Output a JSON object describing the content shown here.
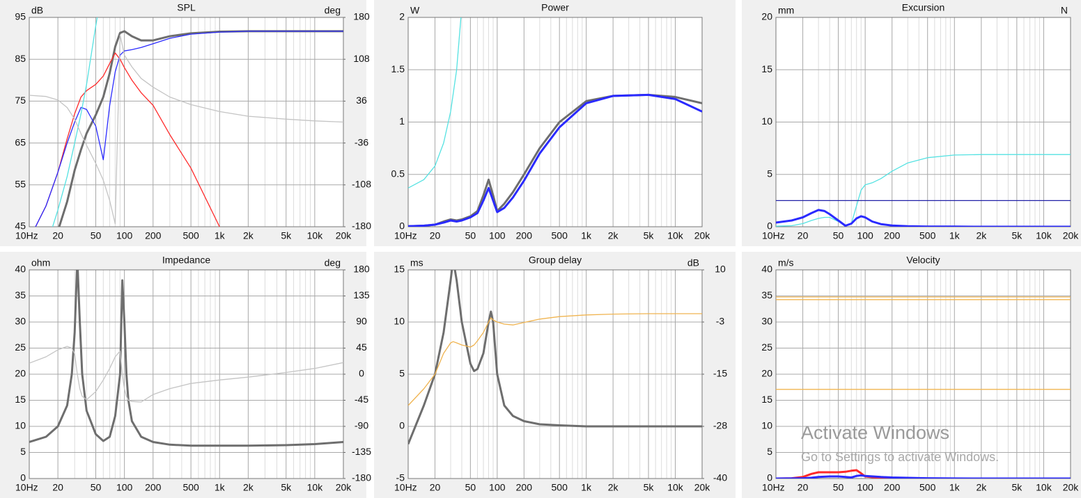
{
  "chart_data": [
    {
      "type": "line",
      "title": "SPL",
      "y_unit": "dB",
      "y2_unit": "deg",
      "xscale": "log",
      "xlim": [
        10,
        20000
      ],
      "xticks": [
        {
          "value": 10,
          "label": "10Hz"
        },
        20,
        50,
        100,
        200,
        500,
        {
          "value": 1000,
          "label": "1k"
        },
        {
          "value": 2000,
          "label": "2k"
        },
        {
          "value": 5000,
          "label": "5k"
        },
        {
          "value": 10000,
          "label": "10k"
        },
        {
          "value": 20000,
          "label": "20k"
        }
      ],
      "xminor": [
        30,
        40,
        60,
        70,
        80,
        90,
        300,
        400,
        600,
        700,
        800,
        900,
        3000,
        4000,
        6000,
        7000,
        8000,
        9000
      ],
      "ylim": [
        45,
        95
      ],
      "yticks": [
        45,
        55,
        65,
        75,
        85,
        95
      ],
      "y2lim": [
        -180,
        180
      ],
      "y2ticks": [
        -180,
        -108,
        -36,
        36,
        108,
        180
      ],
      "x": [
        10,
        15,
        20,
        25,
        30,
        35,
        40,
        50,
        60,
        70,
        80,
        90,
        100,
        120,
        150,
        200,
        300,
        500,
        1000,
        2000,
        5000,
        10000,
        20000
      ],
      "series": [
        {
          "color": "#6e6e6e",
          "values": [
            null,
            null,
            44,
            51,
            58.5,
            63.4,
            67.3,
            71.7,
            76,
            81.7,
            88,
            91.3,
            91.7,
            90.5,
            89.5,
            89.5,
            90.5,
            91.2,
            91.6,
            91.7,
            91.7,
            91.7,
            91.7
          ]
        },
        {
          "color": "#ff2a2a",
          "values": [
            42,
            50,
            58,
            66,
            72,
            76,
            77.5,
            79,
            81,
            84,
            86.5,
            85,
            83,
            80,
            77,
            74,
            67,
            59,
            45,
            33,
            null,
            null,
            null
          ]
        },
        {
          "color": "#2a2aff",
          "values": [
            42,
            50,
            58,
            65,
            70,
            73.5,
            73,
            69,
            61,
            74,
            82,
            86,
            87,
            87.3,
            87.8,
            88.7,
            90,
            91,
            91.5,
            91.7,
            91.7,
            91.7,
            91.7
          ]
        },
        {
          "color": "#55e2e2",
          "values": [
            null,
            40,
            49,
            57,
            65,
            72,
            79,
            93,
            103,
            null,
            null,
            null,
            null,
            null,
            null,
            null,
            null,
            null,
            null,
            null,
            null,
            null,
            null
          ]
        },
        {
          "color": "#c4c4c4",
          "axis": "y2",
          "values": [
            46,
            44,
            38,
            25,
            5,
            -20,
            -40,
            -71,
            -100,
            -135,
            -175,
            150,
            115,
            95,
            75,
            60,
            43,
            30,
            18,
            10,
            5,
            2,
            0
          ]
        }
      ]
    },
    {
      "type": "line",
      "title": "Power",
      "y_unit": "W",
      "xscale": "log",
      "xlim": [
        10,
        20000
      ],
      "xticks": [
        {
          "value": 10,
          "label": "10Hz"
        },
        20,
        50,
        100,
        200,
        500,
        {
          "value": 1000,
          "label": "1k"
        },
        {
          "value": 2000,
          "label": "2k"
        },
        {
          "value": 5000,
          "label": "5k"
        },
        {
          "value": 10000,
          "label": "10k"
        },
        {
          "value": 20000,
          "label": "20k"
        }
      ],
      "xminor": [
        30,
        40,
        60,
        70,
        80,
        90,
        300,
        400,
        600,
        700,
        800,
        900,
        3000,
        4000,
        6000,
        7000,
        8000,
        9000
      ],
      "ylim": [
        0,
        2
      ],
      "yticks": [
        0,
        0.5,
        1,
        1.5,
        2
      ],
      "x": [
        10,
        15,
        20,
        25,
        30,
        35,
        40,
        50,
        60,
        70,
        80,
        90,
        100,
        120,
        150,
        200,
        300,
        500,
        1000,
        2000,
        5000,
        10000,
        20000
      ],
      "series": [
        {
          "color": "#6e6e6e",
          "values": [
            0.005,
            0.01,
            0.02,
            0.05,
            0.07,
            0.06,
            0.07,
            0.1,
            0.15,
            0.3,
            0.45,
            0.3,
            0.15,
            0.22,
            0.33,
            0.5,
            0.75,
            1.0,
            1.2,
            1.25,
            1.26,
            1.24,
            1.18
          ]
        },
        {
          "color": "#2a2aff",
          "values": [
            0.005,
            0.01,
            0.02,
            0.04,
            0.06,
            0.05,
            0.06,
            0.09,
            0.13,
            0.25,
            0.37,
            0.25,
            0.14,
            0.18,
            0.28,
            0.44,
            0.7,
            0.95,
            1.18,
            1.25,
            1.26,
            1.22,
            1.1
          ]
        },
        {
          "color": "#55e2e2",
          "values": [
            0.37,
            0.45,
            0.58,
            0.8,
            1.1,
            1.5,
            2.1,
            3,
            null,
            null,
            null,
            null,
            null,
            null,
            null,
            null,
            null,
            null,
            null,
            null,
            null,
            null,
            null
          ]
        }
      ]
    },
    {
      "type": "line",
      "title": "Excursion",
      "y_unit": "mm",
      "y2_unit": "N",
      "xscale": "log",
      "xlim": [
        10,
        20000
      ],
      "xticks": [
        {
          "value": 10,
          "label": "10Hz"
        },
        20,
        50,
        100,
        200,
        500,
        {
          "value": 1000,
          "label": "1k"
        },
        {
          "value": 2000,
          "label": "2k"
        },
        {
          "value": 5000,
          "label": "5k"
        },
        {
          "value": 10000,
          "label": "10k"
        },
        {
          "value": 20000,
          "label": "20k"
        }
      ],
      "xminor": [
        30,
        40,
        60,
        70,
        80,
        90,
        300,
        400,
        600,
        700,
        800,
        900,
        3000,
        4000,
        6000,
        7000,
        8000,
        9000
      ],
      "ylim": [
        0,
        20
      ],
      "yticks": [
        0,
        5,
        10,
        15,
        20
      ],
      "x": [
        10,
        15,
        20,
        25,
        30,
        35,
        40,
        50,
        60,
        70,
        80,
        90,
        100,
        120,
        150,
        200,
        300,
        500,
        1000,
        2000,
        5000,
        10000,
        20000
      ],
      "series": [
        {
          "color": "#55e2e2",
          "values": [
            0.05,
            0.1,
            0.3,
            0.6,
            0.8,
            0.9,
            0.9,
            0.5,
            0.15,
            0.3,
            2,
            3.5,
            4,
            4.2,
            4.6,
            5.3,
            6.1,
            6.6,
            6.85,
            6.9,
            6.9,
            6.9,
            6.9
          ]
        },
        {
          "color": "#2020a8",
          "values": [
            2.5,
            2.5,
            2.5,
            2.5,
            2.5,
            2.5,
            2.5,
            2.5,
            2.5,
            2.5,
            2.5,
            2.5,
            2.5,
            2.5,
            2.5,
            2.5,
            2.5,
            2.5,
            2.5,
            2.5,
            2.5,
            2.5,
            2.5
          ]
        },
        {
          "color": "#2a2aff",
          "values": [
            0.4,
            0.6,
            0.9,
            1.3,
            1.6,
            1.5,
            1.2,
            0.6,
            0.1,
            0.3,
            0.8,
            1.0,
            0.9,
            0.5,
            0.25,
            0.12,
            0.05,
            0.02,
            0.01,
            0,
            0,
            0,
            0
          ]
        }
      ]
    },
    {
      "type": "line",
      "title": "Impedance",
      "y_unit": "ohm",
      "y2_unit": "deg",
      "xscale": "log",
      "xlim": [
        10,
        20000
      ],
      "xticks": [
        {
          "value": 10,
          "label": "10Hz"
        },
        20,
        50,
        100,
        200,
        500,
        {
          "value": 1000,
          "label": "1k"
        },
        {
          "value": 2000,
          "label": "2k"
        },
        {
          "value": 5000,
          "label": "5k"
        },
        {
          "value": 10000,
          "label": "10k"
        },
        {
          "value": 20000,
          "label": "20k"
        }
      ],
      "xminor": [
        30,
        40,
        60,
        70,
        80,
        90,
        300,
        400,
        600,
        700,
        800,
        900,
        3000,
        4000,
        6000,
        7000,
        8000,
        9000
      ],
      "ylim": [
        0,
        40
      ],
      "yticks": [
        0,
        5,
        10,
        15,
        20,
        25,
        30,
        35,
        40
      ],
      "y2lim": [
        -180,
        180
      ],
      "y2ticks": [
        -180,
        -135,
        -90,
        -45,
        0,
        45,
        90,
        135,
        180
      ],
      "x": [
        10,
        15,
        20,
        25,
        28,
        30,
        32,
        34,
        36,
        40,
        50,
        60,
        70,
        80,
        90,
        95,
        100,
        105,
        110,
        120,
        150,
        200,
        300,
        500,
        1000,
        2000,
        5000,
        10000,
        20000
      ],
      "series": [
        {
          "color": "#6e6e6e",
          "values": [
            7,
            8,
            10,
            14,
            20,
            28,
            42,
            30,
            20,
            13,
            8.5,
            7.2,
            8,
            12,
            20,
            38,
            30,
            20,
            15,
            11,
            8,
            7,
            6.5,
            6.3,
            6.3,
            6.3,
            6.4,
            6.6,
            7
          ]
        },
        {
          "color": "#c4c4c4",
          "axis": "y2",
          "values": [
            19,
            30,
            42,
            48,
            45,
            35,
            0,
            -25,
            -38,
            -44,
            -30,
            -10,
            10,
            30,
            40,
            0,
            -25,
            -38,
            -45,
            -47,
            -48,
            -35,
            -25,
            -16,
            -10,
            -5,
            3,
            10,
            20
          ]
        }
      ]
    },
    {
      "type": "line",
      "title": "Group delay",
      "y_unit": "ms",
      "y2_unit": "dB",
      "xscale": "log",
      "xlim": [
        10,
        20000
      ],
      "xticks": [
        {
          "value": 10,
          "label": "10Hz"
        },
        20,
        50,
        100,
        200,
        500,
        {
          "value": 1000,
          "label": "1k"
        },
        {
          "value": 2000,
          "label": "2k"
        },
        {
          "value": 5000,
          "label": "5k"
        },
        {
          "value": 10000,
          "label": "10k"
        },
        {
          "value": 20000,
          "label": "20k"
        }
      ],
      "xminor": [
        30,
        40,
        60,
        70,
        80,
        90,
        300,
        400,
        600,
        700,
        800,
        900,
        3000,
        4000,
        6000,
        7000,
        8000,
        9000
      ],
      "ylim": [
        -5,
        15
      ],
      "yticks": [
        -5,
        0,
        5,
        10,
        15
      ],
      "y2lim": [
        -40,
        10
      ],
      "y2ticks": [
        -40,
        {
          "value": -27.5,
          "label": "-28"
        },
        -15,
        {
          "value": -2.5,
          "label": "-3"
        },
        10
      ],
      "x": [
        10,
        15,
        20,
        25,
        30,
        32,
        35,
        40,
        50,
        55,
        60,
        70,
        80,
        85,
        90,
        100,
        120,
        150,
        200,
        300,
        500,
        1000,
        2000,
        5000,
        10000,
        20000
      ],
      "series": [
        {
          "color": "#6e6e6e",
          "values": [
            -1.7,
            2,
            5,
            9,
            14,
            16,
            14,
            10,
            6,
            5.3,
            5.5,
            7,
            10,
            11,
            10,
            5,
            2,
            1,
            0.5,
            0.2,
            0.1,
            0,
            0,
            0,
            0,
            0
          ]
        },
        {
          "color": "#f0b450",
          "axis": "y2",
          "values": [
            -22.5,
            -18.5,
            -15,
            -10,
            -7.5,
            -7.2,
            -7.5,
            -8,
            -8.5,
            -8,
            -7,
            -5,
            -2.5,
            -1.5,
            -2,
            -2.5,
            -3,
            -3.2,
            -2.6,
            -1.8,
            -1.2,
            -0.8,
            -0.6,
            -0.5,
            -0.5,
            -0.5
          ]
        }
      ]
    },
    {
      "type": "line",
      "title": "Velocity",
      "y_unit": "m/s",
      "xscale": "log",
      "xlim": [
        10,
        20000
      ],
      "xticks": [
        {
          "value": 10,
          "label": "10Hz"
        },
        20,
        50,
        100,
        200,
        500,
        {
          "value": 1000,
          "label": "1k"
        },
        {
          "value": 2000,
          "label": "2k"
        },
        {
          "value": 5000,
          "label": "5k"
        },
        {
          "value": 10000,
          "label": "10k"
        },
        {
          "value": 20000,
          "label": "20k"
        }
      ],
      "xminor": [
        30,
        40,
        60,
        70,
        80,
        90,
        300,
        400,
        600,
        700,
        800,
        900,
        3000,
        4000,
        6000,
        7000,
        8000,
        9000
      ],
      "ylim": [
        0,
        40
      ],
      "yticks": [
        0,
        5,
        10,
        15,
        20,
        25,
        30,
        35,
        40
      ],
      "x": [
        10,
        15,
        20,
        25,
        30,
        40,
        50,
        60,
        70,
        80,
        90,
        100,
        150,
        200,
        500,
        1000,
        2000,
        5000,
        10000,
        20000
      ],
      "series": [
        {
          "color": "#f0b450",
          "values": [
            34.8,
            34.8,
            34.8,
            34.8,
            34.8,
            34.8,
            34.8,
            34.8,
            34.8,
            34.8,
            34.8,
            34.8,
            34.8,
            34.8,
            34.8,
            34.8,
            34.8,
            34.8,
            34.8,
            34.8
          ]
        },
        {
          "color": "#f0b450",
          "values": [
            34.3,
            34.3,
            34.3,
            34.3,
            34.3,
            34.3,
            34.3,
            34.3,
            34.3,
            34.3,
            34.3,
            34.3,
            34.3,
            34.3,
            34.3,
            34.3,
            34.3,
            34.3,
            34.3,
            34.3
          ]
        },
        {
          "color": "#f0b450",
          "values": [
            17.1,
            17.1,
            17.1,
            17.1,
            17.1,
            17.1,
            17.1,
            17.1,
            17.1,
            17.1,
            17.1,
            17.1,
            17.1,
            17.1,
            17.1,
            17.1,
            17.1,
            17.1,
            17.1,
            17.1
          ]
        },
        {
          "color": "#ff2a2a",
          "values": [
            0,
            0.05,
            0.3,
            0.9,
            1.2,
            1.2,
            1.2,
            1.3,
            1.5,
            1.6,
            1.0,
            0.4,
            0.1,
            0.05,
            0,
            0,
            0,
            0,
            0,
            0
          ]
        },
        {
          "color": "#2a2aff",
          "values": [
            0,
            0.02,
            0.05,
            0.15,
            0.3,
            0.4,
            0.4,
            0.3,
            0.2,
            0.5,
            0.6,
            0.5,
            0.3,
            0.2,
            0.05,
            0.02,
            0,
            0,
            0,
            0
          ]
        }
      ]
    }
  ],
  "watermark": {
    "title": "Activate Windows",
    "subtitle": "Go to Settings to activate Windows."
  }
}
